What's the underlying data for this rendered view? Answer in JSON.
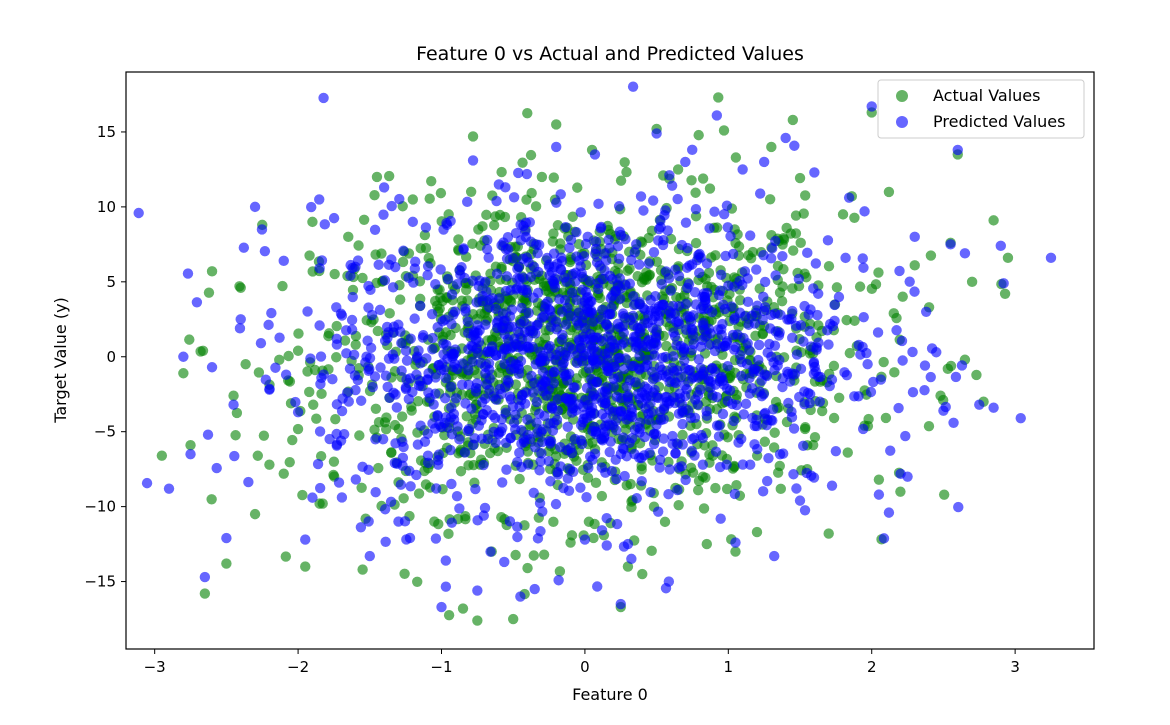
{
  "chart_data": {
    "type": "scatter",
    "title": "Feature 0 vs Actual and Predicted Values",
    "xlabel": "Feature 0",
    "ylabel": "Target Value (y)",
    "xlim": [
      -3.2,
      3.55
    ],
    "ylim": [
      -19.5,
      19.0
    ],
    "xticks": [
      -3,
      -2,
      -1,
      0,
      1,
      2,
      3
    ],
    "yticks": [
      -15,
      -10,
      -5,
      0,
      5,
      10,
      15
    ],
    "xtick_labels": [
      "−3",
      "−2",
      "−1",
      "0",
      "1",
      "2",
      "3"
    ],
    "ytick_labels": [
      "−15",
      "−10",
      "−5",
      "0",
      "5",
      "10",
      "15"
    ],
    "grid": false,
    "legend": {
      "placement": "top-right"
    },
    "series": [
      {
        "name": "Actual Values",
        "color": "#008000",
        "alpha": 0.6,
        "points": [
          [
            -2.95,
            -6.6
          ],
          [
            -2.8,
            -1.1
          ],
          [
            -2.75,
            -5.9
          ],
          [
            -2.65,
            -15.8
          ],
          [
            -2.6,
            5.7
          ],
          [
            -2.5,
            -13.8
          ],
          [
            -2.45,
            -2.6
          ],
          [
            -2.4,
            4.6
          ],
          [
            -2.3,
            -10.5
          ],
          [
            -2.25,
            8.8
          ],
          [
            -2.2,
            -7.2
          ],
          [
            -2.1,
            -7.8
          ],
          [
            -2.0,
            0.4
          ],
          [
            -1.95,
            -14.0
          ],
          [
            -1.9,
            9.0
          ],
          [
            -1.85,
            -9.8
          ],
          [
            -1.75,
            -7.0
          ],
          [
            -1.65,
            8.0
          ],
          [
            -1.55,
            -14.2
          ],
          [
            -1.45,
            12.0
          ],
          [
            -1.35,
            -6.4
          ],
          [
            -1.2,
            10.5
          ],
          [
            -1.05,
            -11.0
          ],
          [
            -0.95,
            9.5
          ],
          [
            -0.85,
            -16.8
          ],
          [
            -0.78,
            14.7
          ],
          [
            -0.75,
            -17.6
          ],
          [
            -0.65,
            -13.0
          ],
          [
            -0.5,
            -17.5
          ],
          [
            -0.4,
            -14.1
          ],
          [
            -0.3,
            12.0
          ],
          [
            -0.2,
            15.5
          ],
          [
            -0.1,
            -12.4
          ],
          [
            0.05,
            13.8
          ],
          [
            0.25,
            -16.7
          ],
          [
            0.3,
            -14.0
          ],
          [
            0.4,
            -14.5
          ],
          [
            0.5,
            15.2
          ],
          [
            0.65,
            12.5
          ],
          [
            0.85,
            -12.5
          ],
          [
            0.93,
            17.3
          ],
          [
            0.97,
            15.1
          ],
          [
            1.05,
            -13.0
          ],
          [
            1.2,
            -11.7
          ],
          [
            1.3,
            14.0
          ],
          [
            1.45,
            15.8
          ],
          [
            1.55,
            -7.5
          ],
          [
            1.7,
            -11.8
          ],
          [
            1.8,
            9.5
          ],
          [
            1.95,
            -4.6
          ],
          [
            2.0,
            16.3
          ],
          [
            2.05,
            -8.2
          ],
          [
            2.12,
            11.0
          ],
          [
            2.2,
            -9.0
          ],
          [
            2.3,
            6.1
          ],
          [
            2.4,
            3.3
          ],
          [
            2.48,
            -2.6
          ],
          [
            2.55,
            7.6
          ],
          [
            2.6,
            13.5
          ],
          [
            2.65,
            -0.2
          ],
          [
            2.7,
            5.0
          ],
          [
            2.78,
            -3.0
          ],
          [
            2.85,
            9.1
          ],
          [
            2.93,
            4.2
          ],
          [
            2.95,
            6.6
          ]
        ]
      },
      {
        "name": "Predicted Values",
        "color": "#0000ff",
        "alpha": 0.6,
        "points": [
          [
            -2.9,
            -8.8
          ],
          [
            -2.8,
            0.0
          ],
          [
            -2.75,
            -6.5
          ],
          [
            -2.65,
            -14.7
          ],
          [
            -2.6,
            -0.7
          ],
          [
            -2.5,
            -12.1
          ],
          [
            -2.45,
            -3.2
          ],
          [
            -2.4,
            2.5
          ],
          [
            -2.3,
            10.0
          ],
          [
            -2.2,
            -2.2
          ],
          [
            -2.1,
            6.4
          ],
          [
            -2.0,
            -3.7
          ],
          [
            -1.95,
            -12.2
          ],
          [
            -1.9,
            -9.4
          ],
          [
            -1.85,
            5.9
          ],
          [
            -1.7,
            -5.6
          ],
          [
            -1.6,
            6.0
          ],
          [
            -1.5,
            -13.3
          ],
          [
            -1.4,
            11.3
          ],
          [
            -1.3,
            -11.0
          ],
          [
            -1.2,
            9.0
          ],
          [
            -1.0,
            -16.7
          ],
          [
            -0.97,
            -13.6
          ],
          [
            -0.78,
            13.1
          ],
          [
            -0.75,
            -15.6
          ],
          [
            -0.6,
            11.5
          ],
          [
            -0.45,
            -16.0
          ],
          [
            -0.35,
            -15.5
          ],
          [
            -0.2,
            14.0
          ],
          [
            0.0,
            -12.2
          ],
          [
            0.07,
            13.5
          ],
          [
            0.25,
            -16.5
          ],
          [
            0.3,
            -12.5
          ],
          [
            0.5,
            14.9
          ],
          [
            0.7,
            13.0
          ],
          [
            0.92,
            16.1
          ],
          [
            1.05,
            -12.4
          ],
          [
            1.1,
            12.5
          ],
          [
            1.25,
            13.0
          ],
          [
            1.32,
            -13.3
          ],
          [
            1.4,
            14.6
          ],
          [
            1.5,
            -9.6
          ],
          [
            1.6,
            12.3
          ],
          [
            1.75,
            -6.3
          ],
          [
            1.95,
            9.7
          ],
          [
            2.0,
            16.7
          ],
          [
            2.05,
            -9.2
          ],
          [
            2.12,
            -10.4
          ],
          [
            2.25,
            -8.0
          ],
          [
            2.3,
            8.0
          ],
          [
            2.38,
            3.0
          ],
          [
            2.45,
            0.3
          ],
          [
            2.5,
            -3.6
          ],
          [
            2.55,
            7.5
          ],
          [
            2.6,
            13.8
          ],
          [
            2.65,
            6.9
          ],
          [
            2.75,
            -3.2
          ],
          [
            2.85,
            -3.4
          ],
          [
            2.9,
            7.4
          ],
          [
            2.92,
            4.9
          ],
          [
            3.25,
            6.6
          ]
        ]
      }
    ]
  }
}
